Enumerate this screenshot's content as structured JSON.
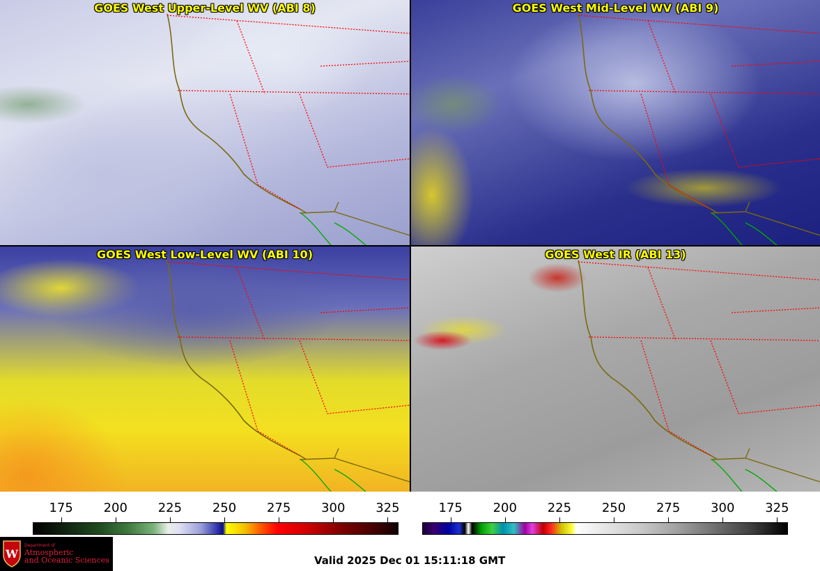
{
  "panels": {
    "top_left": {
      "title": "GOES West Upper-Level WV (ABI 8)"
    },
    "top_right": {
      "title": "GOES West Mid-Level WV (ABI 9)"
    },
    "bottom_left": {
      "title": "GOES West Low-Level WV (ABI 10)"
    },
    "bottom_right": {
      "title": "GOES West IR (ABI 13)"
    }
  },
  "colorbars": {
    "left": {
      "ticks": [
        "175",
        "200",
        "225",
        "250",
        "275",
        "300",
        "325"
      ],
      "min": 162,
      "max": 330
    },
    "right": {
      "ticks": [
        "175",
        "200",
        "225",
        "250",
        "275",
        "300",
        "325"
      ],
      "min": 162,
      "max": 330
    }
  },
  "colors": {
    "title": "#ffff00",
    "state_borders": "#ff0000",
    "coastline": "#7a6a10",
    "mexico_border": "#00aa00"
  },
  "logo": {
    "dept_line1": "Department of",
    "line1": "Atmospheric",
    "line2": "and Oceanic Sciences",
    "icon": "uw-crest-icon"
  },
  "valid_text": "Valid 2025 Dec 01 15:11:18 GMT"
}
